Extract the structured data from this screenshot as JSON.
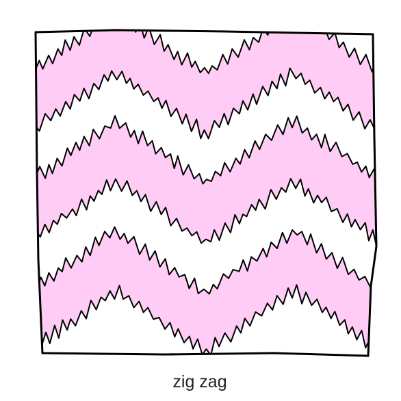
{
  "caption": "zig zag"
}
